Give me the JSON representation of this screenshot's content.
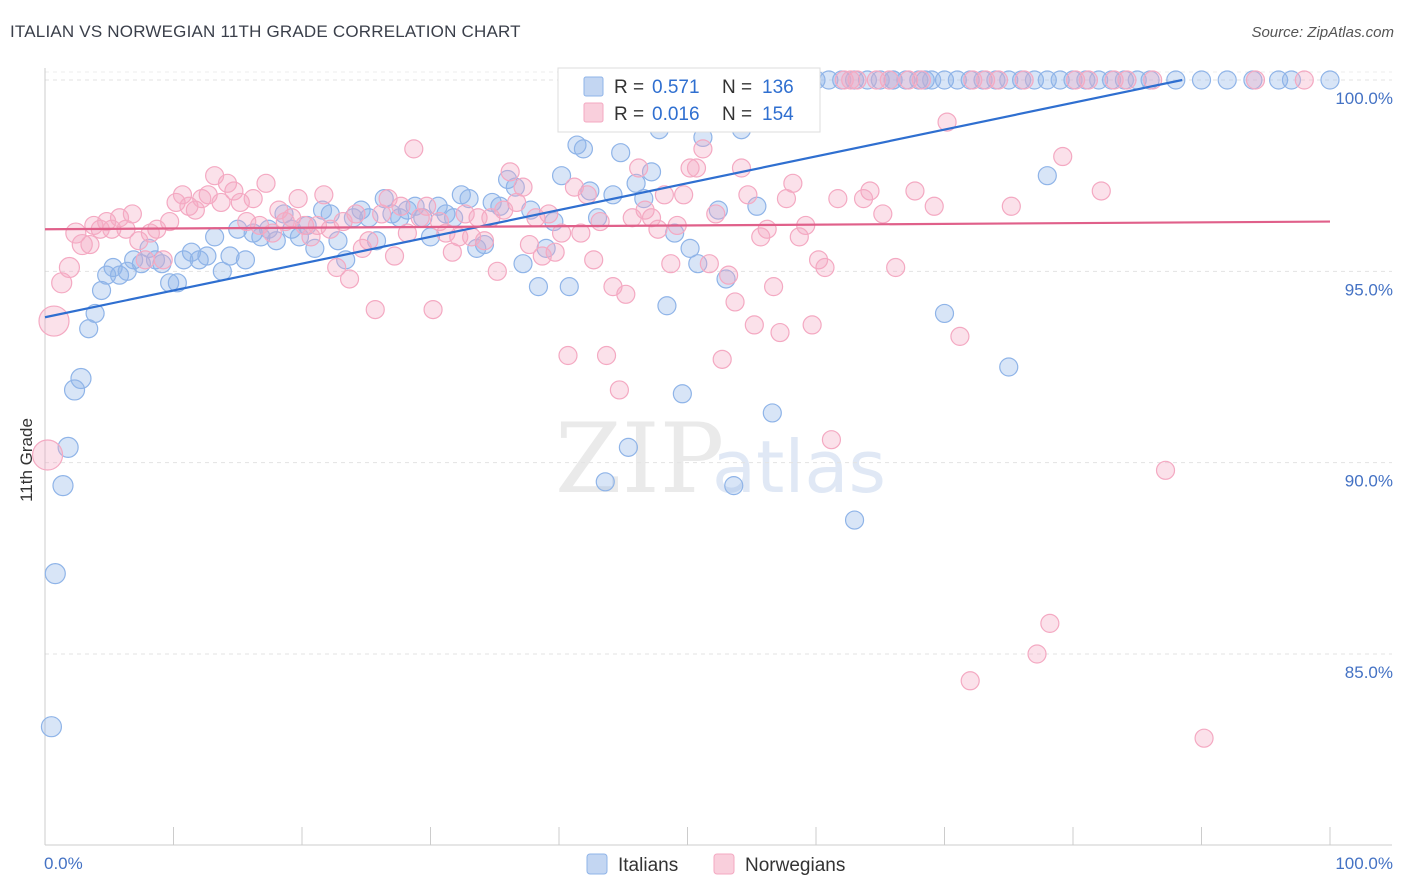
{
  "header": {
    "title": "ITALIAN VS NORWEGIAN 11TH GRADE CORRELATION CHART",
    "source": "Source: ZipAtlas.com"
  },
  "watermark": {
    "zip": "ZIP",
    "atlas": "atlas"
  },
  "chart_data": {
    "type": "scatter",
    "xlabel": "",
    "ylabel": "11th Grade",
    "xlim": [
      0,
      100
    ],
    "ylim": [
      80,
      100.5
    ],
    "x_ticks": [
      {
        "value": 0,
        "label": "0.0%"
      },
      {
        "value": 100,
        "label": "100.0%"
      }
    ],
    "y_ticks": [
      {
        "value": 100,
        "label": "100.0%"
      },
      {
        "value": 95,
        "label": "95.0%"
      },
      {
        "value": 90,
        "label": "90.0%"
      },
      {
        "value": 85,
        "label": "85.0%"
      }
    ],
    "grid": true,
    "legend_position": "top-center",
    "series": [
      {
        "name": "Italians",
        "color": "#8fb4e8",
        "line_color": "#2f6fd0",
        "r_label": "R =",
        "r_value": "0.571",
        "n_label": "N =",
        "n_value": "136",
        "trend": {
          "x": [
            0,
            88.5
          ],
          "y": [
            93.8,
            100.0
          ]
        },
        "points": [
          [
            0.5,
            83.1
          ],
          [
            0.8,
            87.1
          ],
          [
            1.4,
            89.4
          ],
          [
            1.8,
            90.4
          ],
          [
            2.3,
            91.9
          ],
          [
            2.8,
            92.2
          ],
          [
            3.4,
            93.5
          ],
          [
            3.9,
            93.9
          ],
          [
            4.4,
            94.5
          ],
          [
            4.8,
            94.9
          ],
          [
            5.3,
            95.1
          ],
          [
            5.8,
            94.9
          ],
          [
            6.4,
            95.0
          ],
          [
            6.9,
            95.3
          ],
          [
            7.5,
            95.2
          ],
          [
            8.1,
            95.6
          ],
          [
            8.6,
            95.3
          ],
          [
            9.1,
            95.2
          ],
          [
            9.7,
            94.7
          ],
          [
            10.3,
            94.7
          ],
          [
            10.8,
            95.3
          ],
          [
            11.4,
            95.5
          ],
          [
            12.0,
            95.3
          ],
          [
            12.6,
            95.4
          ],
          [
            13.2,
            95.9
          ],
          [
            13.8,
            95.0
          ],
          [
            14.4,
            95.4
          ],
          [
            15.0,
            96.1
          ],
          [
            15.6,
            95.3
          ],
          [
            16.2,
            96.0
          ],
          [
            16.8,
            95.9
          ],
          [
            17.4,
            96.1
          ],
          [
            18.0,
            95.8
          ],
          [
            18.6,
            96.5
          ],
          [
            19.2,
            96.1
          ],
          [
            19.8,
            95.9
          ],
          [
            20.4,
            96.2
          ],
          [
            21.0,
            95.6
          ],
          [
            21.6,
            96.6
          ],
          [
            22.2,
            96.5
          ],
          [
            22.8,
            95.8
          ],
          [
            23.4,
            95.3
          ],
          [
            24.0,
            96.4
          ],
          [
            24.6,
            96.6
          ],
          [
            25.2,
            96.4
          ],
          [
            25.8,
            95.8
          ],
          [
            26.4,
            96.9
          ],
          [
            27.0,
            96.5
          ],
          [
            27.6,
            96.4
          ],
          [
            28.2,
            96.6
          ],
          [
            28.8,
            96.7
          ],
          [
            29.4,
            96.4
          ],
          [
            30.0,
            95.9
          ],
          [
            30.6,
            96.7
          ],
          [
            31.2,
            96.5
          ],
          [
            31.8,
            96.4
          ],
          [
            32.4,
            97.0
          ],
          [
            33.0,
            96.9
          ],
          [
            33.6,
            95.6
          ],
          [
            34.2,
            95.7
          ],
          [
            34.8,
            96.8
          ],
          [
            35.4,
            96.7
          ],
          [
            36.0,
            97.4
          ],
          [
            36.6,
            97.2
          ],
          [
            37.2,
            95.2
          ],
          [
            37.8,
            96.6
          ],
          [
            38.4,
            94.6
          ],
          [
            39.0,
            95.6
          ],
          [
            39.6,
            96.3
          ],
          [
            40.2,
            97.5
          ],
          [
            40.8,
            94.6
          ],
          [
            41.4,
            98.3
          ],
          [
            41.9,
            98.2
          ],
          [
            42.4,
            97.1
          ],
          [
            43.0,
            96.4
          ],
          [
            43.6,
            89.5
          ],
          [
            44.2,
            97.0
          ],
          [
            44.8,
            98.1
          ],
          [
            45.4,
            90.4
          ],
          [
            46.0,
            97.3
          ],
          [
            46.6,
            96.9
          ],
          [
            47.2,
            97.6
          ],
          [
            47.8,
            98.7
          ],
          [
            48.4,
            94.1
          ],
          [
            49.0,
            96.0
          ],
          [
            49.6,
            91.8
          ],
          [
            50.2,
            95.6
          ],
          [
            50.8,
            95.2
          ],
          [
            51.2,
            98.5
          ],
          [
            51.8,
            100.0
          ],
          [
            52.4,
            96.6
          ],
          [
            53.0,
            94.8
          ],
          [
            53.6,
            89.4
          ],
          [
            54.2,
            98.7
          ],
          [
            54.8,
            100.0
          ],
          [
            55.4,
            96.7
          ],
          [
            56.0,
            99.0
          ],
          [
            56.6,
            91.3
          ],
          [
            57.2,
            100.0
          ],
          [
            57.8,
            100.0
          ],
          [
            58.4,
            100.0
          ],
          [
            59.0,
            100.0
          ],
          [
            60.0,
            100.0
          ],
          [
            61.0,
            100.0
          ],
          [
            62.0,
            100.0
          ],
          [
            63.0,
            100.0
          ],
          [
            64.0,
            100.0
          ],
          [
            65.0,
            100.0
          ],
          [
            66.0,
            100.0
          ],
          [
            67.0,
            100.0
          ],
          [
            68.0,
            100.0
          ],
          [
            69.0,
            100.0
          ],
          [
            70.0,
            100.0
          ],
          [
            71.0,
            100.0
          ],
          [
            73.0,
            100.0
          ],
          [
            75.0,
            100.0
          ],
          [
            76.0,
            100.0
          ],
          [
            78.0,
            100.0
          ],
          [
            80.0,
            100.0
          ],
          [
            81.0,
            100.0
          ],
          [
            82.0,
            100.0
          ],
          [
            84.0,
            100.0
          ],
          [
            86.0,
            100.0
          ],
          [
            88.0,
            100.0
          ],
          [
            90.0,
            100.0
          ],
          [
            92.0,
            100.0
          ],
          [
            94.0,
            100.0
          ],
          [
            96.0,
            100.0
          ],
          [
            97.0,
            100.0
          ],
          [
            100.0,
            100.0
          ],
          [
            63.0,
            88.5
          ],
          [
            70.0,
            93.9
          ],
          [
            75.0,
            92.5
          ],
          [
            78.0,
            97.5
          ],
          [
            77.0,
            100.0
          ],
          [
            83.0,
            100.0
          ],
          [
            72.0,
            100.0
          ],
          [
            66.0,
            100.0
          ],
          [
            68.5,
            100.0
          ],
          [
            74.0,
            100.0
          ],
          [
            79.0,
            100.0
          ],
          [
            85.0,
            100.0
          ]
        ]
      },
      {
        "name": "Norwegians",
        "color": "#f4a9c2",
        "line_color": "#e0608a",
        "r_label": "R =",
        "r_value": "0.016",
        "n_label": "N =",
        "n_value": "154",
        "trend": {
          "x": [
            0,
            100
          ],
          "y": [
            96.1,
            96.3
          ]
        },
        "points": [
          [
            0.2,
            90.2
          ],
          [
            0.7,
            93.7
          ],
          [
            1.3,
            94.7
          ],
          [
            1.9,
            95.1
          ],
          [
            2.4,
            96.0
          ],
          [
            2.9,
            95.7
          ],
          [
            3.5,
            95.7
          ],
          [
            3.8,
            96.2
          ],
          [
            4.3,
            96.1
          ],
          [
            4.8,
            96.3
          ],
          [
            5.2,
            96.1
          ],
          [
            5.8,
            96.4
          ],
          [
            6.3,
            96.1
          ],
          [
            6.8,
            96.5
          ],
          [
            7.3,
            95.8
          ],
          [
            7.8,
            95.3
          ],
          [
            8.2,
            96.0
          ],
          [
            8.7,
            96.1
          ],
          [
            9.2,
            95.3
          ],
          [
            9.7,
            96.3
          ],
          [
            10.2,
            96.8
          ],
          [
            10.7,
            97.0
          ],
          [
            11.2,
            96.7
          ],
          [
            11.7,
            96.6
          ],
          [
            12.2,
            96.9
          ],
          [
            12.7,
            97.0
          ],
          [
            13.2,
            97.5
          ],
          [
            13.7,
            96.8
          ],
          [
            14.2,
            97.3
          ],
          [
            14.7,
            97.1
          ],
          [
            15.2,
            96.8
          ],
          [
            15.7,
            96.3
          ],
          [
            16.2,
            96.9
          ],
          [
            16.7,
            96.2
          ],
          [
            17.2,
            97.3
          ],
          [
            17.7,
            96.0
          ],
          [
            18.2,
            96.6
          ],
          [
            18.7,
            96.3
          ],
          [
            19.2,
            96.4
          ],
          [
            19.7,
            96.9
          ],
          [
            20.2,
            96.2
          ],
          [
            20.7,
            95.9
          ],
          [
            21.2,
            96.2
          ],
          [
            21.7,
            97.0
          ],
          [
            22.2,
            96.1
          ],
          [
            22.7,
            95.1
          ],
          [
            23.2,
            96.3
          ],
          [
            23.7,
            94.8
          ],
          [
            24.2,
            96.5
          ],
          [
            24.7,
            95.6
          ],
          [
            25.2,
            95.8
          ],
          [
            25.7,
            94.0
          ],
          [
            26.2,
            96.5
          ],
          [
            26.7,
            96.9
          ],
          [
            27.2,
            95.4
          ],
          [
            27.7,
            96.7
          ],
          [
            28.2,
            96.0
          ],
          [
            28.7,
            98.2
          ],
          [
            29.2,
            96.4
          ],
          [
            29.7,
            96.7
          ],
          [
            30.2,
            94.0
          ],
          [
            30.7,
            96.3
          ],
          [
            31.2,
            96.0
          ],
          [
            31.7,
            95.5
          ],
          [
            32.2,
            95.9
          ],
          [
            32.7,
            96.5
          ],
          [
            33.2,
            95.9
          ],
          [
            33.7,
            96.4
          ],
          [
            34.2,
            95.8
          ],
          [
            34.7,
            96.4
          ],
          [
            35.2,
            95.0
          ],
          [
            35.7,
            96.6
          ],
          [
            36.2,
            97.6
          ],
          [
            36.7,
            96.8
          ],
          [
            37.2,
            97.2
          ],
          [
            37.7,
            95.7
          ],
          [
            38.2,
            96.4
          ],
          [
            38.7,
            95.4
          ],
          [
            39.2,
            96.5
          ],
          [
            39.7,
            95.5
          ],
          [
            40.2,
            96.0
          ],
          [
            40.7,
            92.8
          ],
          [
            41.2,
            97.2
          ],
          [
            41.7,
            96.0
          ],
          [
            42.2,
            97.0
          ],
          [
            42.7,
            95.3
          ],
          [
            43.2,
            96.3
          ],
          [
            43.7,
            92.8
          ],
          [
            44.2,
            94.6
          ],
          [
            44.7,
            91.9
          ],
          [
            45.2,
            94.4
          ],
          [
            45.7,
            96.4
          ],
          [
            46.2,
            97.7
          ],
          [
            46.7,
            96.6
          ],
          [
            47.2,
            96.4
          ],
          [
            47.7,
            96.1
          ],
          [
            48.2,
            97.0
          ],
          [
            48.7,
            95.2
          ],
          [
            49.2,
            96.2
          ],
          [
            49.7,
            97.0
          ],
          [
            50.2,
            97.7
          ],
          [
            50.7,
            97.7
          ],
          [
            51.2,
            98.2
          ],
          [
            51.7,
            95.2
          ],
          [
            52.2,
            96.5
          ],
          [
            52.7,
            92.7
          ],
          [
            53.2,
            94.9
          ],
          [
            53.7,
            94.2
          ],
          [
            54.2,
            97.7
          ],
          [
            54.7,
            97.0
          ],
          [
            55.2,
            93.6
          ],
          [
            55.7,
            95.9
          ],
          [
            56.2,
            96.1
          ],
          [
            56.7,
            94.6
          ],
          [
            57.2,
            93.4
          ],
          [
            57.7,
            96.9
          ],
          [
            58.2,
            97.3
          ],
          [
            58.7,
            95.9
          ],
          [
            59.2,
            96.2
          ],
          [
            59.7,
            93.6
          ],
          [
            60.2,
            95.3
          ],
          [
            60.7,
            95.1
          ],
          [
            61.2,
            90.6
          ],
          [
            61.7,
            96.9
          ],
          [
            62.2,
            100.0
          ],
          [
            62.7,
            100.0
          ],
          [
            63.2,
            100.0
          ],
          [
            63.7,
            96.9
          ],
          [
            64.2,
            97.1
          ],
          [
            64.7,
            100.0
          ],
          [
            65.2,
            96.5
          ],
          [
            65.7,
            100.0
          ],
          [
            66.2,
            95.1
          ],
          [
            67.2,
            100.0
          ],
          [
            67.7,
            97.1
          ],
          [
            68.2,
            100.0
          ],
          [
            69.2,
            96.7
          ],
          [
            70.2,
            98.9
          ],
          [
            71.2,
            93.3
          ],
          [
            72.2,
            100.0
          ],
          [
            73.2,
            100.0
          ],
          [
            74.2,
            100.0
          ],
          [
            75.2,
            96.7
          ],
          [
            76.2,
            100.0
          ],
          [
            77.2,
            85.0
          ],
          [
            78.2,
            85.8
          ],
          [
            79.2,
            98.0
          ],
          [
            80.2,
            100.0
          ],
          [
            81.2,
            100.0
          ],
          [
            82.2,
            97.1
          ],
          [
            83.2,
            100.0
          ],
          [
            84.2,
            100.0
          ],
          [
            86.2,
            100.0
          ],
          [
            87.2,
            89.8
          ],
          [
            90.2,
            82.8
          ],
          [
            94.2,
            100.0
          ],
          [
            72.0,
            84.3
          ],
          [
            98.0,
            100.0
          ]
        ]
      }
    ]
  }
}
